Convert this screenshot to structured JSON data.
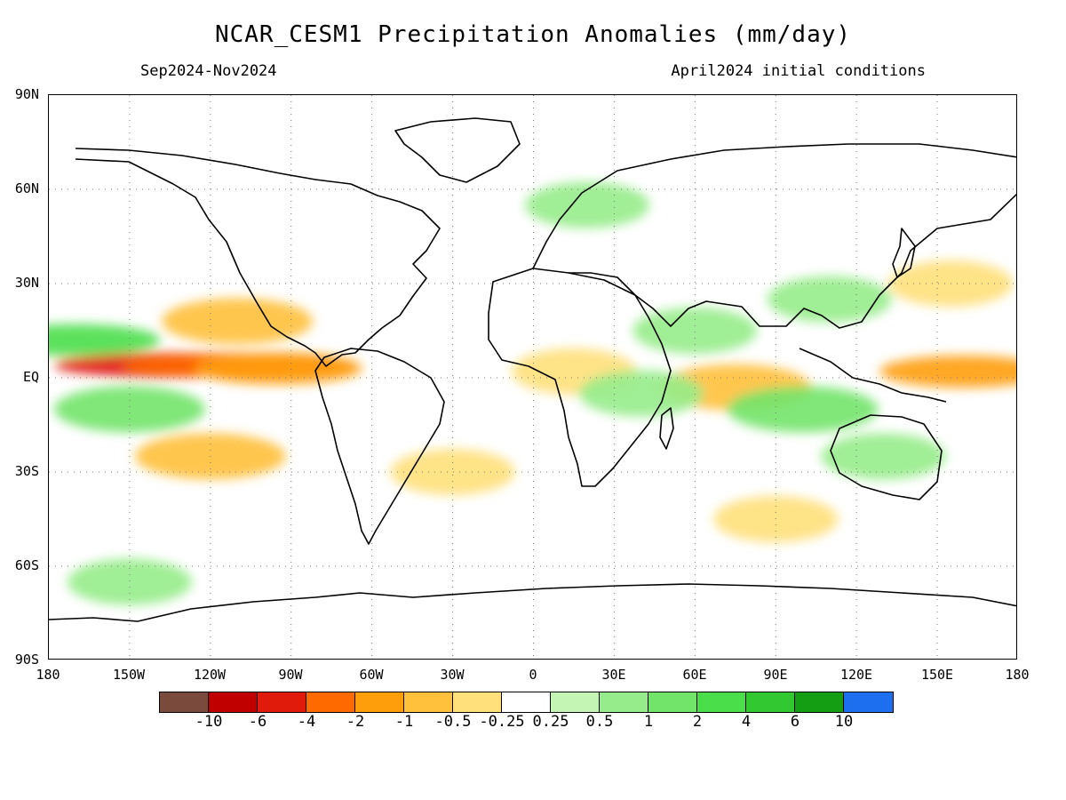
{
  "header": {
    "title": "NCAR_CESM1 Precipitation Anomalies (mm/day)",
    "subtitle_left": "Sep2024-Nov2024",
    "subtitle_right": "April2024 initial conditions"
  },
  "axes": {
    "lat_labels": [
      "90N",
      "60N",
      "30N",
      "EQ",
      "30S",
      "60S",
      "90S"
    ],
    "lon_labels": [
      "180",
      "150W",
      "120W",
      "90W",
      "60W",
      "30W",
      "0",
      "30E",
      "60E",
      "90E",
      "120E",
      "150E",
      "180"
    ]
  },
  "colorbar": {
    "colors": [
      "#7a4a3c",
      "#c00000",
      "#e01b0b",
      "#ff6a00",
      "#ff9e0b",
      "#ffc03c",
      "#ffe07a",
      "#ffffff",
      "#c4f5b4",
      "#96ec8a",
      "#72e46a",
      "#4ade4a",
      "#32c832",
      "#149e14",
      "#1e6ef0"
    ],
    "labels": [
      "-10",
      "-6",
      "-4",
      "-2",
      "-1",
      "-0.5",
      "-0.25",
      "0.25",
      "0.5",
      "1",
      "2",
      "4",
      "6",
      "10"
    ]
  },
  "map": {
    "grid": "dotted",
    "anomaly_patches": [
      {
        "lon": -135,
        "lat": 4,
        "value": -6
      },
      {
        "lon": -110,
        "lat": 4,
        "value": -4
      },
      {
        "lon": -95,
        "lat": 3,
        "value": -2
      },
      {
        "lon": 160,
        "lat": 2,
        "value": -2
      },
      {
        "lon": -120,
        "lat": -25,
        "value": -1
      },
      {
        "lon": -30,
        "lat": -30,
        "value": -0.5
      },
      {
        "lon": 90,
        "lat": -45,
        "value": -0.5
      },
      {
        "lon": 75,
        "lat": -3,
        "value": -1
      },
      {
        "lon": 15,
        "lat": 2,
        "value": -0.5
      },
      {
        "lon": -110,
        "lat": 18,
        "value": -1
      },
      {
        "lon": 155,
        "lat": 30,
        "value": -0.5
      },
      {
        "lon": -150,
        "lat": -10,
        "value": 1
      },
      {
        "lon": -170,
        "lat": 12,
        "value": 2
      },
      {
        "lon": 100,
        "lat": -10,
        "value": 1
      },
      {
        "lon": 60,
        "lat": 15,
        "value": 0.5
      },
      {
        "lon": 130,
        "lat": -25,
        "value": 0.5
      },
      {
        "lon": -150,
        "lat": -65,
        "value": 0.5
      },
      {
        "lon": 20,
        "lat": 55,
        "value": 0.5
      },
      {
        "lon": 110,
        "lat": 25,
        "value": 0.5
      },
      {
        "lon": 40,
        "lat": -5,
        "value": 0.5
      }
    ]
  }
}
